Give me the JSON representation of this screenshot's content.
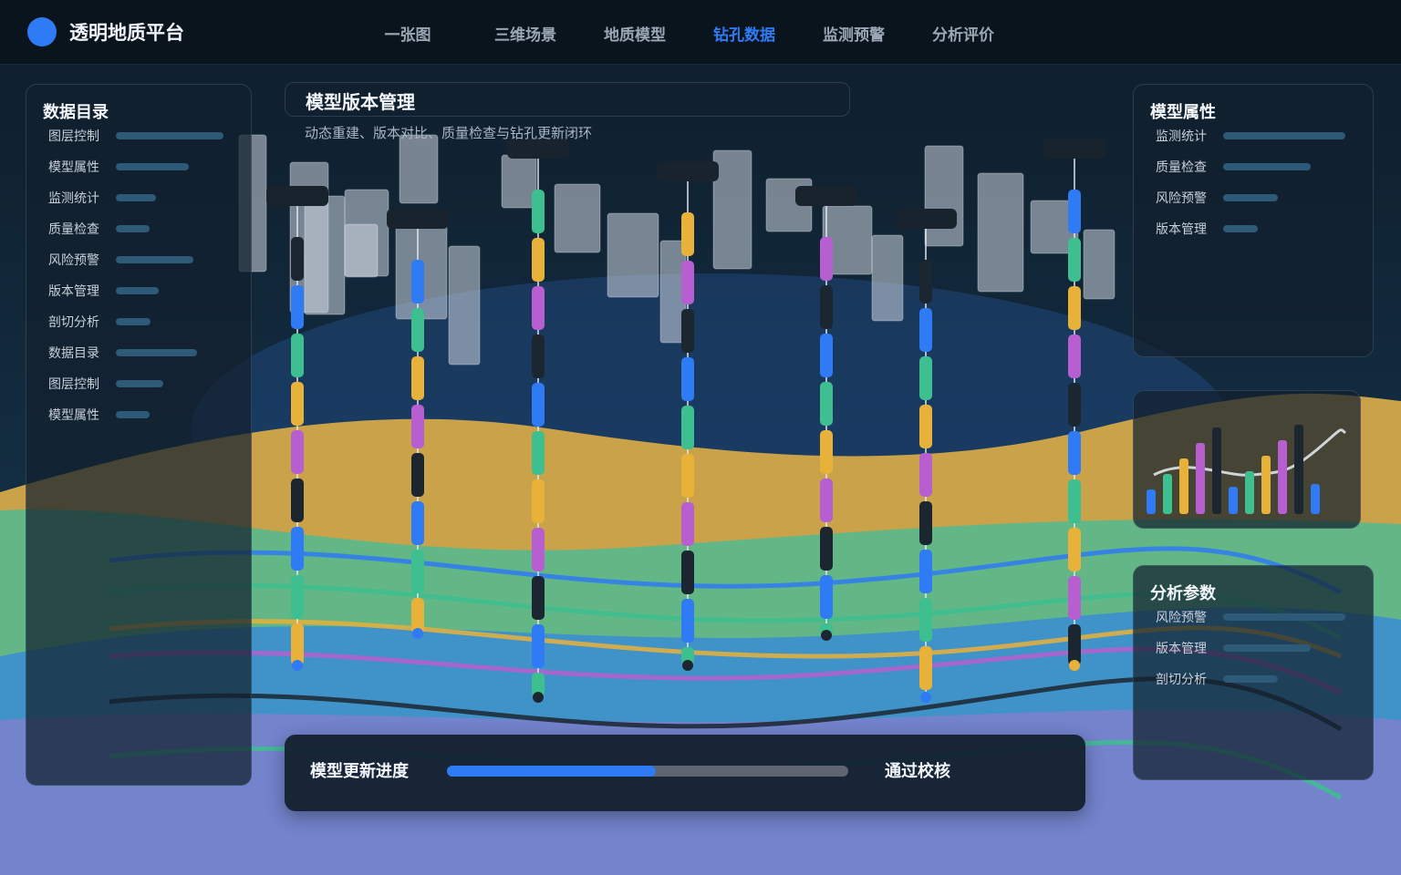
{
  "header": {
    "title": "透明地质平台",
    "nav": [
      "一张图",
      "三维场景",
      "地质模型",
      "钻孔数据",
      "监测预警",
      "分析评价"
    ],
    "active": 3
  },
  "left_panel": {
    "title": "数据目录",
    "items": [
      {
        "label": "图层控制",
        "value": 100
      },
      {
        "label": "模型属性",
        "value": 68
      },
      {
        "label": "监测统计",
        "value": 37
      },
      {
        "label": "质量检查",
        "value": 31
      },
      {
        "label": "风险预警",
        "value": 72
      },
      {
        "label": "版本管理",
        "value": 40
      },
      {
        "label": "剖切分析",
        "value": 32
      },
      {
        "label": "数据目录",
        "value": 75
      },
      {
        "label": "图层控制",
        "value": 44
      },
      {
        "label": "模型属性",
        "value": 31
      }
    ]
  },
  "main_panel": {
    "title": "模型版本管理",
    "subtitle": "动态重建、版本对比、质量检查与钻孔更新闭环"
  },
  "right_panels": [
    {
      "title": "模型属性",
      "items": [
        {
          "label": "监测统计",
          "value": 100
        },
        {
          "label": "质量检查",
          "value": 72
        },
        {
          "label": "风险预警",
          "value": 45
        },
        {
          "label": "版本管理",
          "value": 28
        }
      ]
    },
    {
      "title": "分析参数",
      "items": [
        {
          "label": "风险预警",
          "value": 100
        },
        {
          "label": "版本管理",
          "value": 72
        },
        {
          "label": "剖切分析",
          "value": 45
        }
      ]
    }
  ],
  "mini_chart": {
    "values": [
      27,
      44,
      61,
      78,
      95,
      30,
      47,
      64,
      81,
      98,
      33
    ],
    "colors": [
      "#2f7bf5",
      "#3dbf8f",
      "#e8b13a",
      "#b75fd0",
      "#1c2630"
    ]
  },
  "progress": {
    "label": "模型更新进度",
    "value": 52,
    "range": [
      0,
      100
    ],
    "status": "通过校核"
  }
}
